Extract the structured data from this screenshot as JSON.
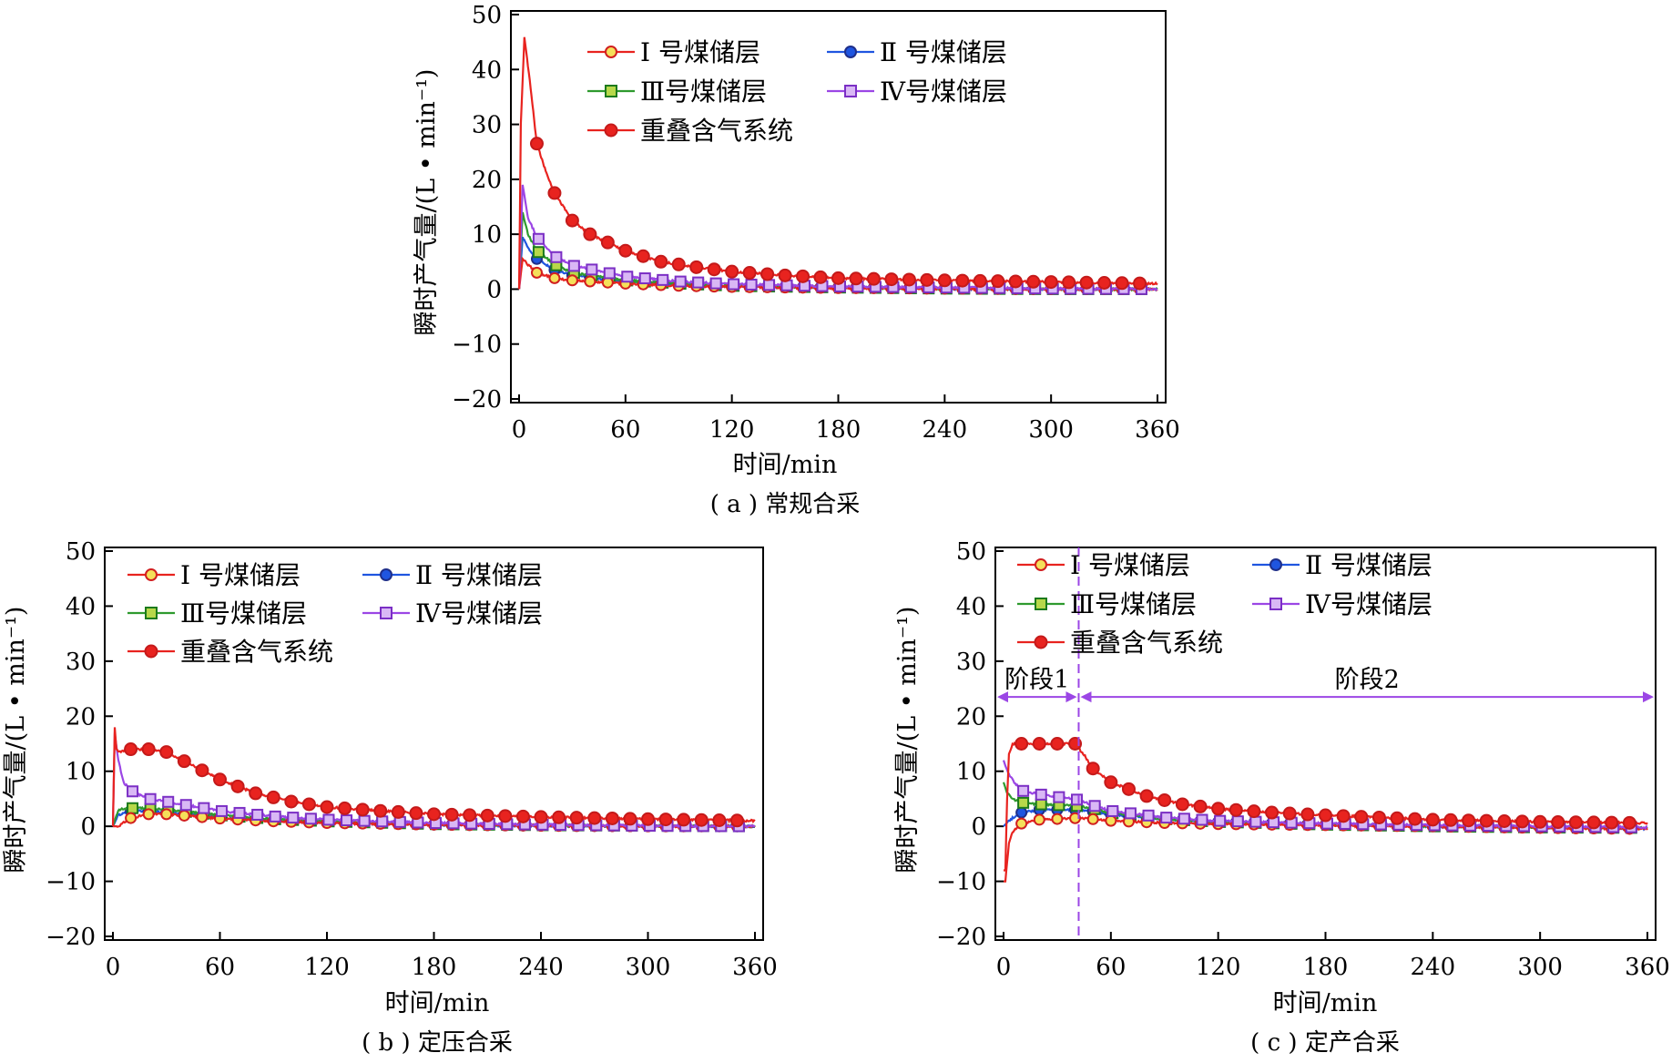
{
  "series_styles": [
    {
      "key": "s1",
      "label": "Ⅰ 号煤储层",
      "color": "#e8231f",
      "marker": "circle",
      "fill": "#f5e05a",
      "stroke": "#d11f1f"
    },
    {
      "key": "s2",
      "label": "Ⅱ 号煤储层",
      "color": "#1f55e0",
      "marker": "circle",
      "fill": "#1f55e0",
      "stroke": "#1f2f8a"
    },
    {
      "key": "s3",
      "label": "Ⅲ号煤储层",
      "color": "#2e9a2e",
      "marker": "square",
      "fill": "#b7d84a",
      "stroke": "#1c7a1c"
    },
    {
      "key": "s4",
      "label": "Ⅳ号煤储层",
      "color": "#9b46e5",
      "marker": "square",
      "fill": "#d9b8f5",
      "stroke": "#7b2fc5"
    },
    {
      "key": "s5",
      "label": "重叠含气系统",
      "color": "#e8231f",
      "marker": "circle",
      "fill": "#e8231f",
      "stroke": "#c41a1a"
    }
  ],
  "chart_data": [
    {
      "id": "a",
      "type": "line",
      "caption": "( a ) 常规合采",
      "xlabel": "时间/min",
      "ylabel": "瞬时产气量/(L • min⁻¹)",
      "xlim": [
        0,
        360
      ],
      "ylim": [
        -20,
        50
      ],
      "xticks": [
        0,
        60,
        120,
        180,
        240,
        300,
        360
      ],
      "yticks": [
        -20,
        -10,
        0,
        10,
        20,
        30,
        40,
        50
      ],
      "legend_position": "top",
      "series": [
        {
          "key": "s1",
          "name": "Ⅰ 号煤储层",
          "x": [
            0,
            2,
            5,
            10,
            20,
            30,
            60,
            90,
            120,
            180,
            240,
            300,
            360
          ],
          "y": [
            0,
            5.5,
            4.5,
            3,
            2,
            1.6,
            1,
            0.6,
            0.4,
            0.2,
            0.1,
            0,
            0
          ]
        },
        {
          "key": "s2",
          "name": "Ⅱ 号煤储层",
          "x": [
            0,
            2,
            5,
            10,
            20,
            30,
            60,
            90,
            120,
            180,
            240,
            300,
            360
          ],
          "y": [
            0,
            9.5,
            7.5,
            5.5,
            3.5,
            2.5,
            1.3,
            0.8,
            0.5,
            0.3,
            0.1,
            0,
            0
          ]
        },
        {
          "key": "s3",
          "name": "Ⅲ号煤储层",
          "x": [
            0,
            2,
            5,
            10,
            20,
            30,
            60,
            90,
            120,
            180,
            240,
            300,
            360
          ],
          "y": [
            0,
            14,
            10,
            7,
            4.5,
            3,
            1.6,
            1,
            0.6,
            0.3,
            0.1,
            0,
            0
          ]
        },
        {
          "key": "s4",
          "name": "Ⅳ号煤储层",
          "x": [
            0,
            2,
            5,
            10,
            20,
            30,
            60,
            90,
            120,
            180,
            240,
            300,
            360
          ],
          "y": [
            0,
            19,
            13,
            9.5,
            6,
            4.3,
            2.3,
            1.4,
            0.9,
            0.5,
            0.3,
            0.1,
            0
          ]
        },
        {
          "key": "s5",
          "name": "重叠含气系统",
          "x": [
            0,
            1,
            3,
            6,
            10,
            15,
            20,
            30,
            40,
            60,
            80,
            100,
            120,
            150,
            180,
            240,
            300,
            360
          ],
          "y": [
            0,
            30,
            46,
            38,
            26.5,
            21.5,
            17.5,
            12.5,
            10,
            7,
            5,
            4,
            3.2,
            2.5,
            2,
            1.6,
            1.3,
            1
          ]
        }
      ]
    },
    {
      "id": "b",
      "type": "line",
      "caption": "( b ) 定压合采",
      "xlabel": "时间/min",
      "ylabel": "瞬时产气量/(L • min⁻¹)",
      "xlim": [
        0,
        360
      ],
      "ylim": [
        -20,
        50
      ],
      "xticks": [
        0,
        60,
        120,
        180,
        240,
        300,
        360
      ],
      "yticks": [
        -20,
        -10,
        0,
        10,
        20,
        30,
        40,
        50
      ],
      "legend_position": "top",
      "series": [
        {
          "key": "s1",
          "name": "Ⅰ 号煤储层",
          "x": [
            0,
            3,
            10,
            20,
            30,
            60,
            90,
            120,
            180,
            240,
            300,
            360
          ],
          "y": [
            0,
            0,
            1.5,
            2.2,
            2.2,
            1.4,
            0.9,
            0.6,
            0.3,
            0.1,
            0,
            0
          ]
        },
        {
          "key": "s2",
          "name": "Ⅱ 号煤储层",
          "x": [
            0,
            3,
            10,
            20,
            30,
            60,
            90,
            120,
            180,
            240,
            300,
            360
          ],
          "y": [
            0,
            2,
            2.8,
            2.7,
            2.5,
            1.6,
            1,
            0.7,
            0.3,
            0.1,
            0,
            0
          ]
        },
        {
          "key": "s3",
          "name": "Ⅲ号煤储层",
          "x": [
            0,
            3,
            10,
            20,
            30,
            60,
            90,
            120,
            180,
            240,
            300,
            360
          ],
          "y": [
            0,
            3,
            3.3,
            3.2,
            3,
            2,
            1.3,
            0.9,
            0.4,
            0.2,
            0.1,
            0
          ]
        },
        {
          "key": "s4",
          "name": "Ⅳ号煤储层",
          "x": [
            0,
            1,
            3,
            6,
            10,
            20,
            30,
            60,
            90,
            120,
            180,
            240,
            300,
            360
          ],
          "y": [
            0,
            17,
            12,
            8,
            6.5,
            5,
            4.5,
            2.8,
            1.8,
            1.2,
            0.6,
            0.3,
            0.1,
            0
          ]
        },
        {
          "key": "s5",
          "name": "重叠含气系统",
          "x": [
            0,
            1,
            2,
            4,
            10,
            20,
            30,
            45,
            60,
            80,
            100,
            120,
            150,
            180,
            240,
            300,
            360
          ],
          "y": [
            0,
            18,
            14,
            13.5,
            14,
            14,
            13.5,
            11,
            8.5,
            6,
            4.5,
            3.5,
            2.8,
            2.2,
            1.7,
            1.3,
            1
          ]
        }
      ]
    },
    {
      "id": "c",
      "type": "line",
      "caption": "( c ) 定产合采",
      "xlabel": "时间/min",
      "ylabel": "瞬时产气量/(L • min⁻¹)",
      "xlim": [
        0,
        360
      ],
      "ylim": [
        -20,
        50
      ],
      "xticks": [
        0,
        60,
        120,
        180,
        240,
        300,
        360
      ],
      "yticks": [
        -20,
        -10,
        0,
        10,
        20,
        30,
        40,
        50
      ],
      "legend_position": "top",
      "stage_boundary_x": 42,
      "stage1_label": "阶段1",
      "stage2_label": "阶段2",
      "series": [
        {
          "key": "s1",
          "name": "Ⅰ 号煤储层",
          "x": [
            0,
            1,
            3,
            5,
            10,
            20,
            42,
            50,
            60,
            90,
            120,
            180,
            240,
            300,
            360
          ],
          "y": [
            -10,
            -10,
            -3,
            -1,
            0.5,
            1.2,
            1.5,
            1.3,
            1,
            0.6,
            0.4,
            0.2,
            0,
            -0.3,
            -0.5
          ]
        },
        {
          "key": "s2",
          "name": "Ⅱ 号煤储层",
          "x": [
            0,
            3,
            5,
            10,
            20,
            42,
            50,
            60,
            90,
            120,
            180,
            240,
            300,
            360
          ],
          "y": [
            0,
            1,
            1.5,
            2.5,
            3,
            3,
            2.7,
            2.2,
            1.3,
            0.8,
            0.3,
            0,
            -0.2,
            -0.4
          ]
        },
        {
          "key": "s3",
          "name": "Ⅲ号煤储层",
          "x": [
            0,
            2,
            5,
            10,
            20,
            42,
            50,
            60,
            90,
            120,
            180,
            240,
            300,
            360
          ],
          "y": [
            8,
            6,
            5,
            4.3,
            4,
            3.7,
            3.2,
            2.4,
            1.3,
            0.8,
            0.3,
            0,
            -0.2,
            -0.3
          ]
        },
        {
          "key": "s4",
          "name": "Ⅳ号煤储层",
          "x": [
            0,
            1,
            3,
            6,
            10,
            20,
            42,
            50,
            60,
            90,
            120,
            180,
            240,
            300,
            360
          ],
          "y": [
            12,
            11,
            9.5,
            8,
            6.5,
            5.8,
            4.8,
            3.8,
            2.8,
            1.6,
            1,
            0.5,
            0.2,
            0,
            -0.2
          ]
        },
        {
          "key": "s5",
          "name": "重叠含气系统",
          "x": [
            0,
            1,
            2,
            3,
            5,
            10,
            20,
            30,
            40,
            45,
            50,
            60,
            80,
            100,
            120,
            150,
            180,
            240,
            300,
            360
          ],
          "y": [
            -8,
            -8,
            5,
            13,
            15,
            15,
            15,
            15,
            15,
            13,
            10.5,
            8,
            5.5,
            4,
            3.2,
            2.5,
            2,
            1.2,
            0.8,
            0.6
          ]
        }
      ]
    }
  ]
}
